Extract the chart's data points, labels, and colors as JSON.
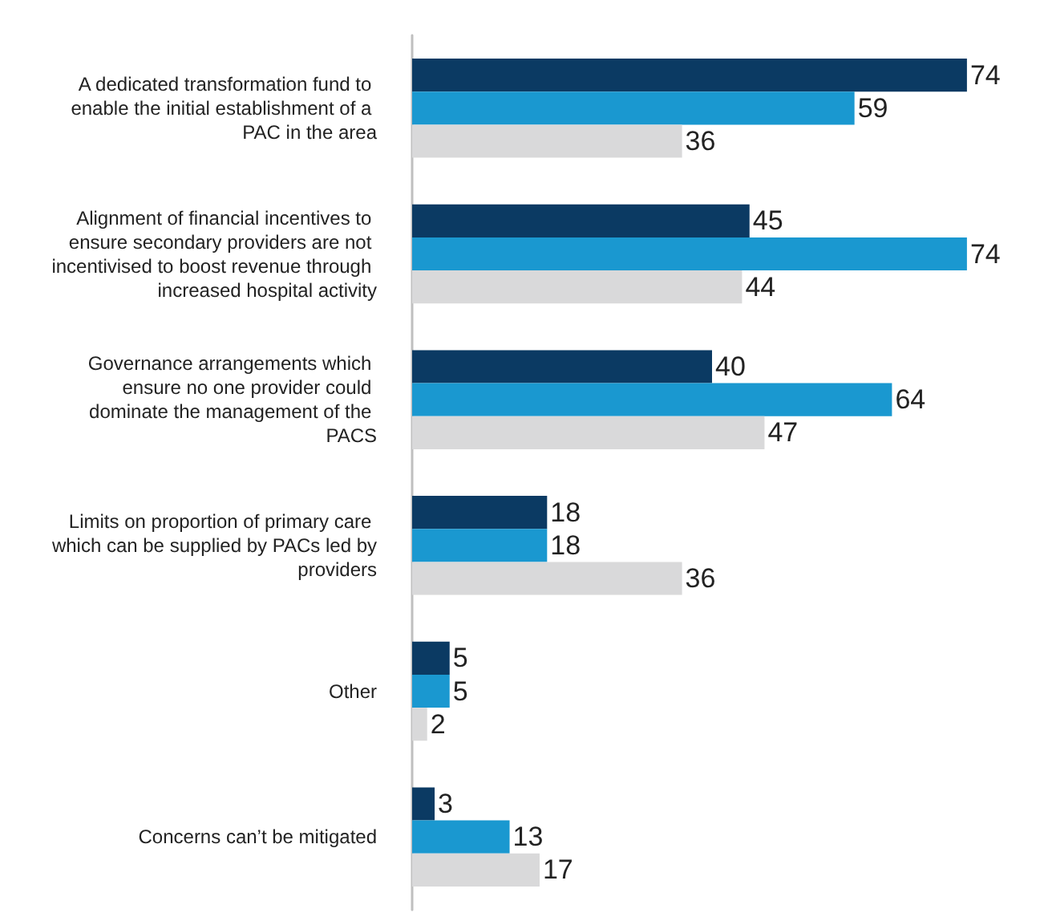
{
  "chart_data": {
    "type": "bar",
    "orientation": "horizontal",
    "data_labels": true,
    "categories": [
      "A dedicated transformation fund to enable the initial establishment of a PAC in the area",
      "Alignment of financial incentives to ensure secondary providers are not incentivised to boost revenue through increased hospital activity",
      "Governance arrangements which ensure no one provider could dominate the management of the PACS",
      "Limits on proportion of primary care which can be supplied by PACs led by providers",
      "Other",
      "Concerns can’t be mitigated"
    ],
    "series": [
      {
        "color": "#0b3a63",
        "values": [
          74,
          45,
          40,
          18,
          5,
          3
        ]
      },
      {
        "color": "#1a98d0",
        "values": [
          59,
          74,
          64,
          18,
          5,
          13
        ]
      },
      {
        "color": "#d9d9da",
        "values": [
          36,
          44,
          47,
          36,
          2,
          17
        ]
      }
    ]
  }
}
